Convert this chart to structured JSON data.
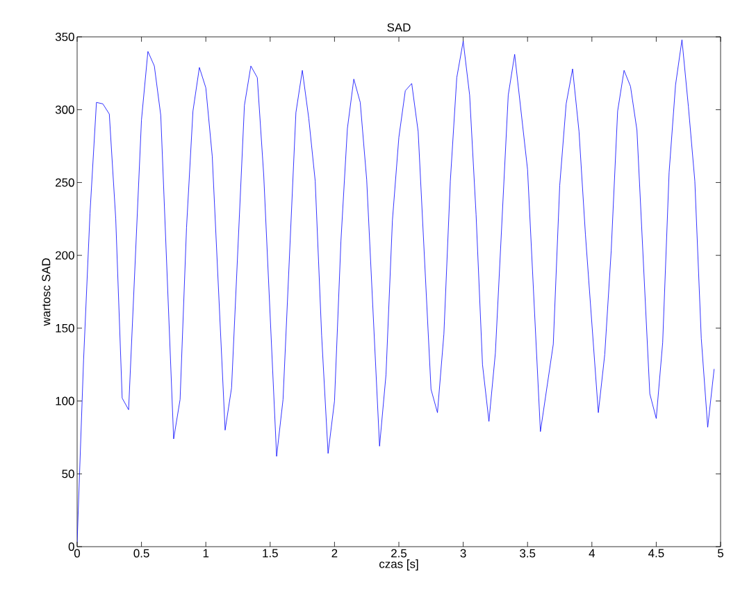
{
  "chart_data": {
    "type": "line",
    "title": "SAD",
    "xlabel": "czas [s]",
    "ylabel": "wartosc SAD",
    "x": [
      0,
      0.05,
      0.1,
      0.15,
      0.2,
      0.25,
      0.3,
      0.35,
      0.4,
      0.5,
      0.55,
      0.6,
      0.65,
      0.75,
      0.8,
      0.85,
      0.9,
      0.95,
      1.0,
      1.05,
      1.15,
      1.2,
      1.3,
      1.35,
      1.4,
      1.45,
      1.55,
      1.6,
      1.7,
      1.75,
      1.8,
      1.85,
      1.9,
      1.95,
      2.0,
      2.05,
      2.1,
      2.15,
      2.2,
      2.25,
      2.35,
      2.4,
      2.45,
      2.5,
      2.55,
      2.6,
      2.65,
      2.75,
      2.8,
      2.85,
      2.9,
      2.95,
      3.0,
      3.05,
      3.1,
      3.15,
      3.2,
      3.25,
      3.35,
      3.4,
      3.5,
      3.6,
      3.7,
      3.75,
      3.8,
      3.85,
      3.9,
      3.95,
      4.05,
      4.1,
      4.15,
      4.2,
      4.25,
      4.3,
      4.35,
      4.45,
      4.5,
      4.55,
      4.6,
      4.65,
      4.7,
      4.75,
      4.8,
      4.85,
      4.9,
      4.95
    ],
    "series": [
      {
        "color": "#0000ff",
        "values": [
          3,
          128,
          229,
          305,
          304,
          297,
          225,
          102,
          94,
          293,
          340,
          330,
          296,
          74,
          101,
          219,
          299,
          329,
          315,
          268,
          80,
          109,
          303,
          330,
          322,
          255,
          62,
          101,
          298,
          327,
          294,
          251,
          145,
          64,
          100,
          210,
          287,
          321,
          305,
          252,
          69,
          118,
          224,
          281,
          313,
          318,
          285,
          108,
          92,
          146,
          251,
          322,
          347,
          310,
          228,
          125,
          86,
          133,
          310,
          338,
          259,
          79,
          139,
          248,
          304,
          328,
          285,
          214,
          92,
          132,
          203,
          299,
          327,
          316,
          286,
          105,
          88,
          140,
          257,
          317,
          348,
          302,
          251,
          143,
          82,
          122
        ]
      }
    ],
    "xlim": [
      0,
      5
    ],
    "ylim": [
      0,
      350
    ],
    "xticks": [
      0,
      0.5,
      1,
      1.5,
      2,
      2.5,
      3,
      3.5,
      4,
      4.5,
      5
    ],
    "yticks": [
      0,
      50,
      100,
      150,
      200,
      250,
      300,
      350
    ],
    "marker": "none",
    "line_style": "solid"
  }
}
